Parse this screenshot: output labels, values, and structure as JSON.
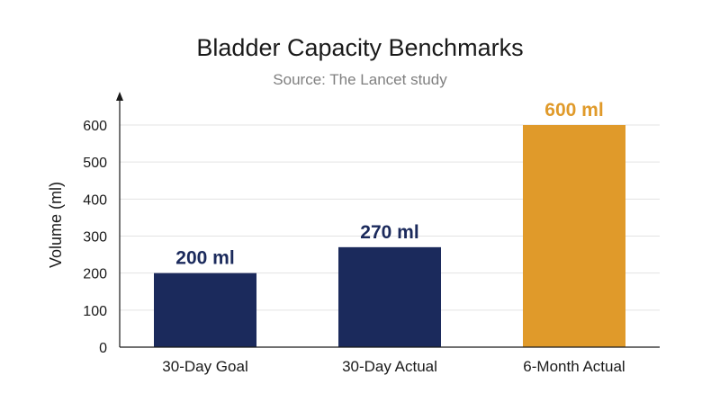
{
  "chart_data": {
    "type": "bar",
    "title": "Bladder Capacity Benchmarks",
    "subtitle": "Source: The Lancet study",
    "xlabel": "",
    "ylabel": "Volume (ml)",
    "ylim": [
      0,
      600
    ],
    "yticks": [
      0,
      100,
      200,
      300,
      400,
      500,
      600
    ],
    "grid": true,
    "legend": "none",
    "categories": [
      "30-Day Goal",
      "30-Day Actual",
      "6-Month Actual"
    ],
    "values": [
      200,
      270,
      600
    ],
    "data_labels": [
      "200 ml",
      "270 ml",
      "600 ml"
    ],
    "colors": [
      "#1b2a5c",
      "#1b2a5c",
      "#e09a2a"
    ],
    "label_colors": [
      "#1b2a5c",
      "#1b2a5c",
      "#e09a2a"
    ]
  }
}
